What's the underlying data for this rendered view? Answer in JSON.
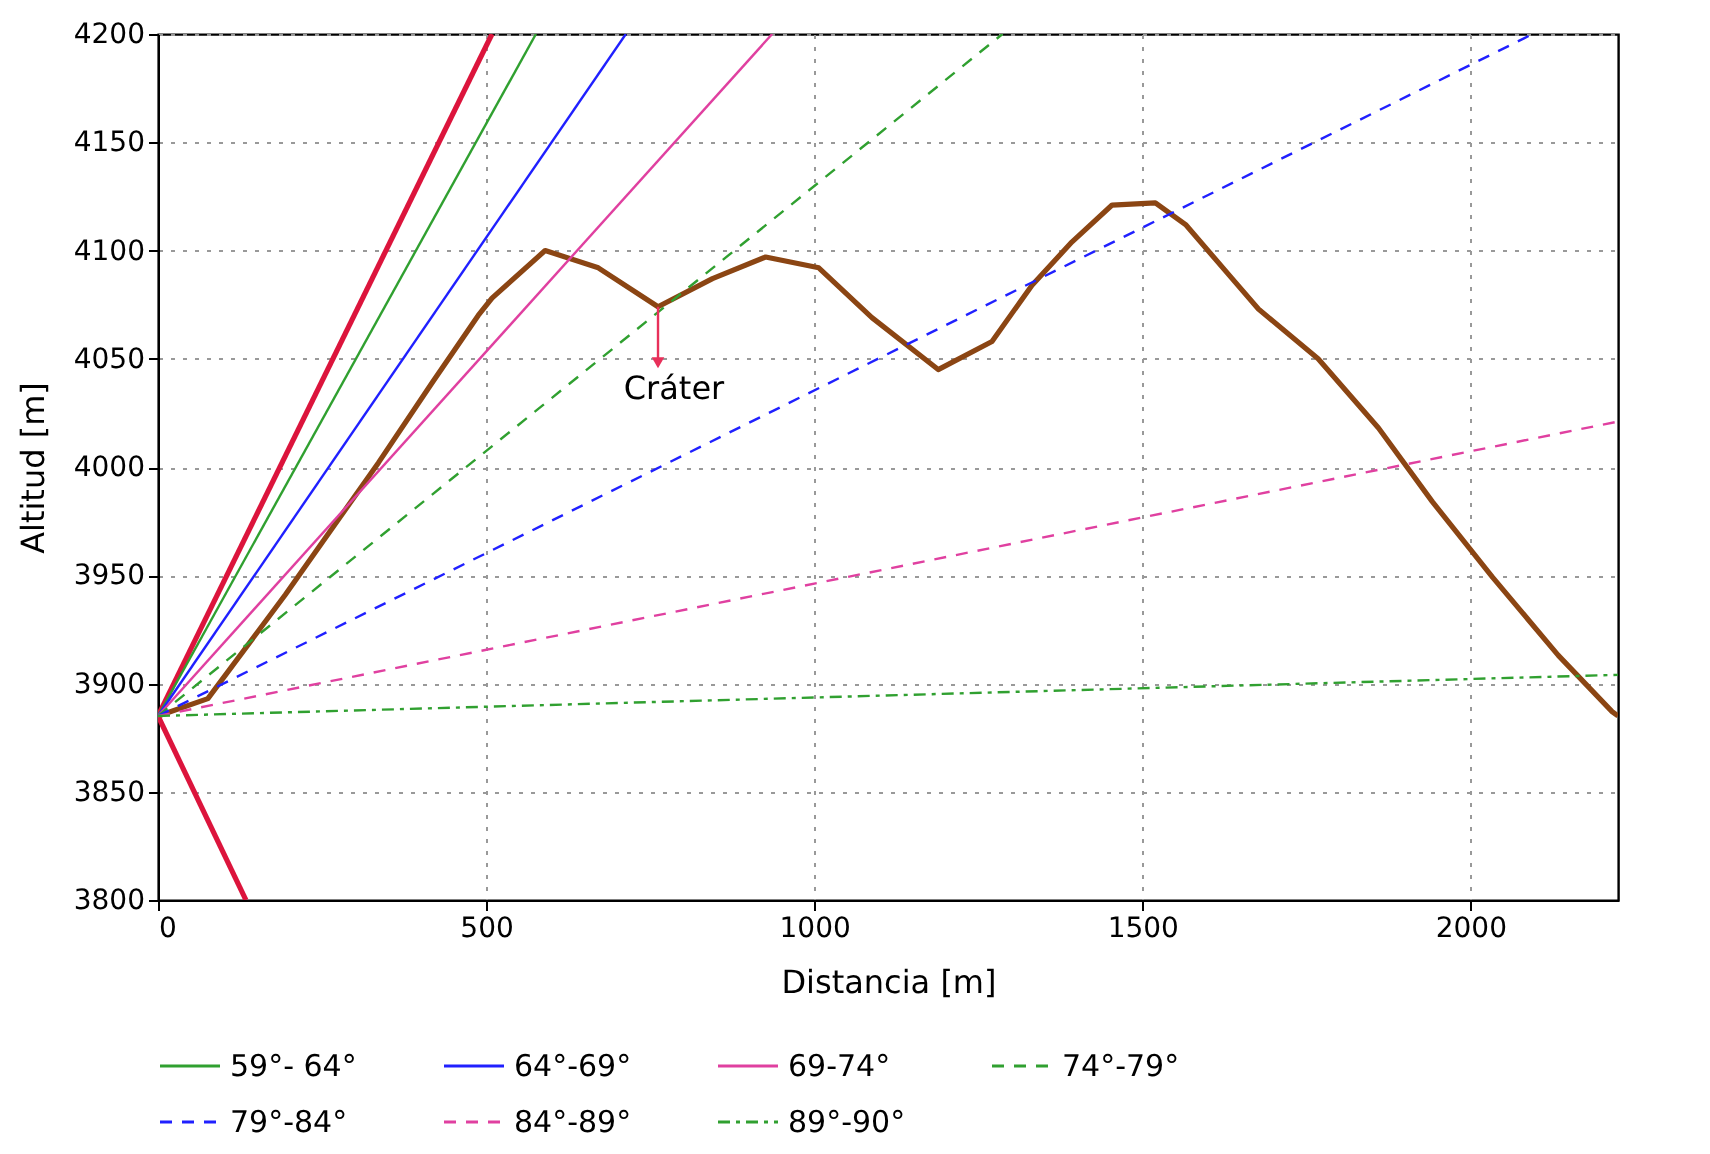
{
  "chart_data": {
    "type": "line",
    "xlabel": "Distancia [m]",
    "ylabel": "Altitud [m]",
    "xlim": [
      0,
      2225
    ],
    "ylim": [
      3800,
      4200
    ],
    "xticks": [
      0,
      500,
      1000,
      1500,
      2000
    ],
    "yticks": [
      3800,
      3850,
      3900,
      3950,
      4000,
      4050,
      4100,
      4150,
      4200
    ],
    "grid": true,
    "legend": "bottom",
    "marker": "none",
    "annotations": [
      {
        "text": "Cráter",
        "x": 762,
        "y": 4074
      }
    ],
    "series": [
      {
        "color": "#8b4513",
        "line_style": "solid",
        "x": [
          0,
          76,
          194,
          336,
          418,
          488,
          509,
          590,
          671,
          762,
          845,
          926,
          1007,
          1088,
          1189,
          1271,
          1332,
          1393,
          1454,
          1520,
          1566,
          1637,
          1677,
          1768,
          1860,
          1942,
          2034,
          2134,
          2216,
          2225
        ],
        "values": [
          3885,
          3893,
          3941,
          4002,
          4039,
          4070,
          4078,
          4100,
          4092,
          4074,
          4087,
          4097,
          4092,
          4069,
          4045,
          4058,
          4084,
          4104,
          4121,
          4122,
          4112,
          4087,
          4073,
          4050,
          4018,
          3984,
          3949,
          3913,
          3887,
          3885
        ]
      },
      {
        "color": "#dc143c",
        "line_style": "solid",
        "x": [
          0,
          509
        ],
        "values": [
          3885,
          4200
        ]
      },
      {
        "color": "#dc143c",
        "line_style": "solid",
        "x": [
          0,
          134
        ],
        "values": [
          3885,
          3800
        ]
      },
      {
        "name": "59°- 64°",
        "color": "#30a030",
        "line_style": "solid",
        "x": [
          0,
          576
        ],
        "values": [
          3885,
          4200
        ]
      },
      {
        "name": "64°-69°",
        "color": "#2020ff",
        "line_style": "solid",
        "x": [
          0,
          713
        ],
        "values": [
          3885,
          4200
        ]
      },
      {
        "name": "69-74°",
        "color": "#e040a0",
        "line_style": "solid",
        "x": [
          0,
          936
        ],
        "values": [
          3885,
          4200
        ]
      },
      {
        "name": "74°-79°",
        "color": "#30a030",
        "line_style": "dashed",
        "x": [
          0,
          1287
        ],
        "values": [
          3885,
          4200
        ]
      },
      {
        "name": "79°-84°",
        "color": "#2020ff",
        "line_style": "dashed",
        "x": [
          0,
          2095
        ],
        "values": [
          3885,
          4200
        ]
      },
      {
        "name": "84°-89°",
        "color": "#e040a0",
        "line_style": "dashed",
        "x": [
          0,
          2225
        ],
        "values": [
          3885,
          4021
        ]
      },
      {
        "name": "89°-90°",
        "color": "#30a030",
        "line_style": "dashdot",
        "x": [
          0,
          2225
        ],
        "values": [
          3885,
          3904
        ]
      }
    ]
  }
}
